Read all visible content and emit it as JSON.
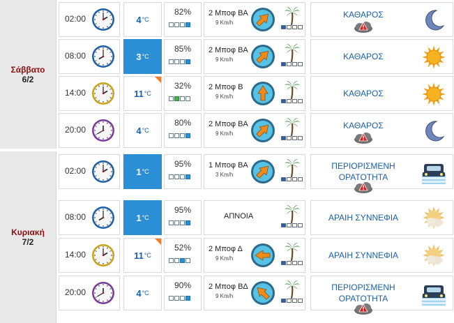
{
  "days": [
    {
      "name": "Σάββατο",
      "date": "6/2",
      "rows": [
        {
          "time": "02:00",
          "clock": "night",
          "temp": "4",
          "unit": "°C",
          "highlight": false,
          "corner": false,
          "humidity": "82%",
          "hum_bars": [
            0,
            0,
            0,
            1
          ],
          "wind": "2 Μποφ ΒΑ",
          "wind_speed": "9 Km/h",
          "wind_dir": "ne",
          "palm_bars": [
            1,
            0,
            0,
            0
          ],
          "sky": [
            "ΚΑΘΑΡΟΣ"
          ],
          "sky_icon": "moon-icon",
          "alert": true
        },
        {
          "time": "08:00",
          "clock": "day",
          "temp": "3",
          "unit": "°C",
          "highlight": true,
          "corner": false,
          "humidity": "85%",
          "hum_bars": [
            0,
            0,
            0,
            1
          ],
          "wind": "2 Μποφ ΒΑ",
          "wind_speed": "9 Km/h",
          "wind_dir": "ne",
          "palm_bars": [
            1,
            0,
            0,
            0
          ],
          "sky": [
            "ΚΑΘΑΡΟΣ"
          ],
          "sky_icon": "sun-icon",
          "alert": false
        },
        {
          "time": "14:00",
          "clock": "noon",
          "temp": "11",
          "unit": "°C",
          "highlight": false,
          "corner": true,
          "humidity": "32%",
          "hum_bars": [
            0,
            1,
            0,
            0
          ],
          "hum_green": true,
          "wind": "2 Μποφ Β",
          "wind_speed": "9 Km/h",
          "wind_dir": "n",
          "palm_bars": [
            1,
            0,
            0,
            0
          ],
          "sky": [
            "ΚΑΘΑΡΟΣ"
          ],
          "sky_icon": "sun-icon",
          "alert": false
        },
        {
          "time": "20:00",
          "clock": "evening",
          "temp": "4",
          "unit": "°C",
          "highlight": false,
          "corner": false,
          "humidity": "80%",
          "hum_bars": [
            0,
            0,
            0,
            1
          ],
          "wind": "2 Μποφ ΒΑ",
          "wind_speed": "9 Km/h",
          "wind_dir": "ne",
          "palm_bars": [
            1,
            0,
            0,
            0
          ],
          "sky": [
            "ΚΑΘΑΡΟΣ"
          ],
          "sky_icon": "moon-icon",
          "alert": true
        }
      ]
    },
    {
      "name": "Κυριακή",
      "date": "7/2",
      "rows": [
        {
          "time": "02:00",
          "clock": "night",
          "temp": "1",
          "unit": "°C",
          "highlight": true,
          "corner": false,
          "humidity": "95%",
          "hum_bars": [
            0,
            0,
            0,
            1
          ],
          "wind": "1 Μποφ ΒΑ",
          "wind_speed": "3 Km/h",
          "wind_dir": "ne",
          "palm_bars": [
            1,
            0,
            0,
            0
          ],
          "sky": [
            "ΠΕΡΙΟΡΙΣΜΕΝΗ",
            "ΟΡΑΤΟΤΗΤΑ"
          ],
          "sky_icon": "fog-car-icon",
          "alert": true
        },
        {
          "time": "08:00",
          "clock": "day",
          "temp": "1",
          "unit": "°C",
          "highlight": true,
          "corner": false,
          "humidity": "95%",
          "hum_bars": [
            0,
            0,
            0,
            1
          ],
          "wind": "ΑΠΝΟΙΑ",
          "wind_speed": "",
          "wind_dir": "none",
          "palm_bars": [
            1,
            0,
            0,
            0
          ],
          "sky": [
            "ΑΡΑΙΗ ΣΥΝΝΕΦΙΑ"
          ],
          "sky_icon": "sun-cloud-icon",
          "alert": false
        },
        {
          "time": "14:00",
          "clock": "noon",
          "temp": "11",
          "unit": "°C",
          "highlight": false,
          "corner": true,
          "humidity": "52%",
          "hum_bars": [
            0,
            0,
            1,
            0
          ],
          "wind": "2 Μποφ Δ",
          "wind_speed": "9 Km/h",
          "wind_dir": "w",
          "palm_bars": [
            1,
            0,
            0,
            0
          ],
          "sky": [
            "ΑΡΑΙΗ ΣΥΝΝΕΦΙΑ"
          ],
          "sky_icon": "sun-cloud-icon",
          "alert": false
        },
        {
          "time": "20:00",
          "clock": "evening",
          "temp": "4",
          "unit": "°C",
          "highlight": false,
          "corner": false,
          "humidity": "90%",
          "hum_bars": [
            0,
            0,
            0,
            1
          ],
          "wind": "2 Μποφ ΒΔ",
          "wind_speed": "9 Km/h",
          "wind_dir": "nw",
          "palm_bars": [
            1,
            0,
            0,
            0
          ],
          "sky": [
            "ΠΕΡΙΟΡΙΣΜΕΝΗ",
            "ΟΡΑΤΟΤΗΤΑ"
          ],
          "sky_icon": "fog-car-icon",
          "alert": true
        }
      ]
    }
  ]
}
